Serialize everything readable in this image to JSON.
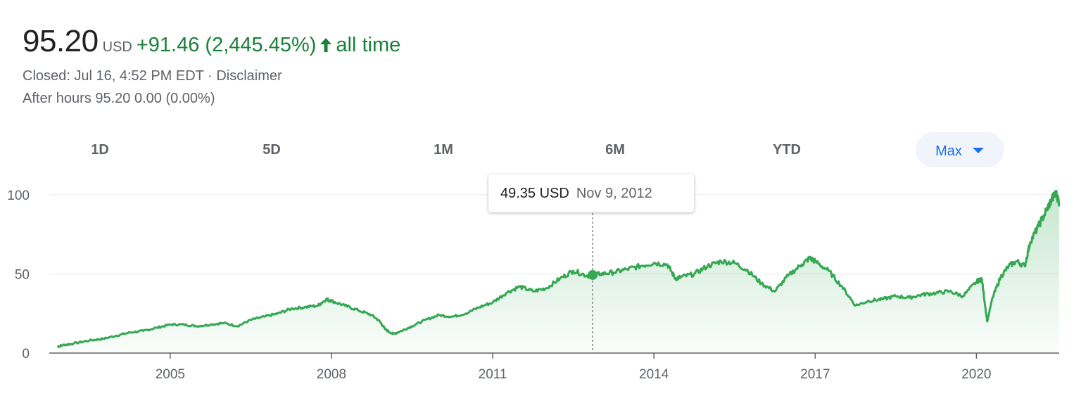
{
  "quote": {
    "price": "95.20",
    "currency": "USD",
    "change": "+91.46 (2,445.45%)",
    "period": "all time",
    "closed": "Closed: Jul 16, 4:52 PM EDT",
    "separator": " · ",
    "disclaimer": "Disclaimer",
    "after_hours": "After hours 95.20 0.00 (0.00%)"
  },
  "colors": {
    "positive": "#188038",
    "line": "#34a853",
    "accent": "#1a73e8",
    "grid": "#e8eaed",
    "axis": "#5f6368"
  },
  "icons": {
    "up": "arrow-up-icon",
    "dropdown": "caret-down-icon"
  },
  "ranges": [
    {
      "label": "1D",
      "active": false
    },
    {
      "label": "5D",
      "active": false
    },
    {
      "label": "1M",
      "active": false
    },
    {
      "label": "6M",
      "active": false
    },
    {
      "label": "YTD",
      "active": false
    },
    {
      "label": "Max",
      "active": true
    }
  ],
  "tooltip": {
    "value": "49.35 USD",
    "date": "Nov 9, 2012"
  },
  "chart_data": {
    "type": "area",
    "title": "",
    "xlabel": "",
    "ylabel": "",
    "x_ticks": [
      2005,
      2008,
      2011,
      2014,
      2017,
      2020
    ],
    "y_ticks": [
      0,
      50,
      100
    ],
    "xlim": [
      2002.75,
      2021.54
    ],
    "ylim": [
      0,
      100
    ],
    "grid": true,
    "legend": "none",
    "hover": {
      "x": 2012.86,
      "y": 49.35
    },
    "series": [
      {
        "x": [
          2002.9,
          2003.0,
          2003.2,
          2003.5,
          2003.75,
          2004.0,
          2004.25,
          2004.5,
          2004.75,
          2005.0,
          2005.25,
          2005.5,
          2005.75,
          2006.0,
          2006.25,
          2006.5,
          2006.75,
          2007.0,
          2007.25,
          2007.5,
          2007.75,
          2007.9,
          2008.0,
          2008.25,
          2008.5,
          2008.75,
          2008.9,
          2009.0,
          2009.15,
          2009.3,
          2009.5,
          2009.75,
          2010.0,
          2010.25,
          2010.5,
          2010.75,
          2011.0,
          2011.25,
          2011.5,
          2011.75,
          2012.0,
          2012.25,
          2012.5,
          2012.75,
          2012.86,
          2013.0,
          2013.25,
          2013.5,
          2013.75,
          2014.0,
          2014.25,
          2014.4,
          2014.5,
          2014.75,
          2015.0,
          2015.25,
          2015.5,
          2015.75,
          2016.0,
          2016.25,
          2016.5,
          2016.75,
          2016.9,
          2017.0,
          2017.25,
          2017.5,
          2017.75,
          2018.0,
          2018.25,
          2018.5,
          2018.75,
          2019.0,
          2019.25,
          2019.5,
          2019.75,
          2020.0,
          2020.1,
          2020.2,
          2020.3,
          2020.45,
          2020.6,
          2020.75,
          2020.9,
          2021.0,
          2021.15,
          2021.3,
          2021.4,
          2021.48,
          2021.54
        ],
        "y": [
          4,
          5,
          6,
          8,
          9,
          11,
          13,
          14,
          16,
          18,
          18,
          17,
          18,
          19,
          17,
          21,
          23,
          25,
          28,
          29,
          30,
          34,
          33,
          30,
          27,
          24,
          20,
          15,
          12,
          14,
          17,
          21,
          24,
          23,
          25,
          29,
          32,
          38,
          42,
          39,
          41,
          47,
          52,
          49,
          49.35,
          50,
          51,
          53,
          55,
          57,
          56,
          47,
          48,
          50,
          55,
          58,
          57,
          52,
          44,
          39,
          49,
          56,
          60,
          58,
          52,
          42,
          30,
          33,
          34,
          36,
          35,
          37,
          38,
          39,
          36,
          45,
          47,
          20,
          35,
          48,
          55,
          58,
          55,
          70,
          80,
          90,
          97,
          101,
          95.2
        ]
      }
    ]
  }
}
